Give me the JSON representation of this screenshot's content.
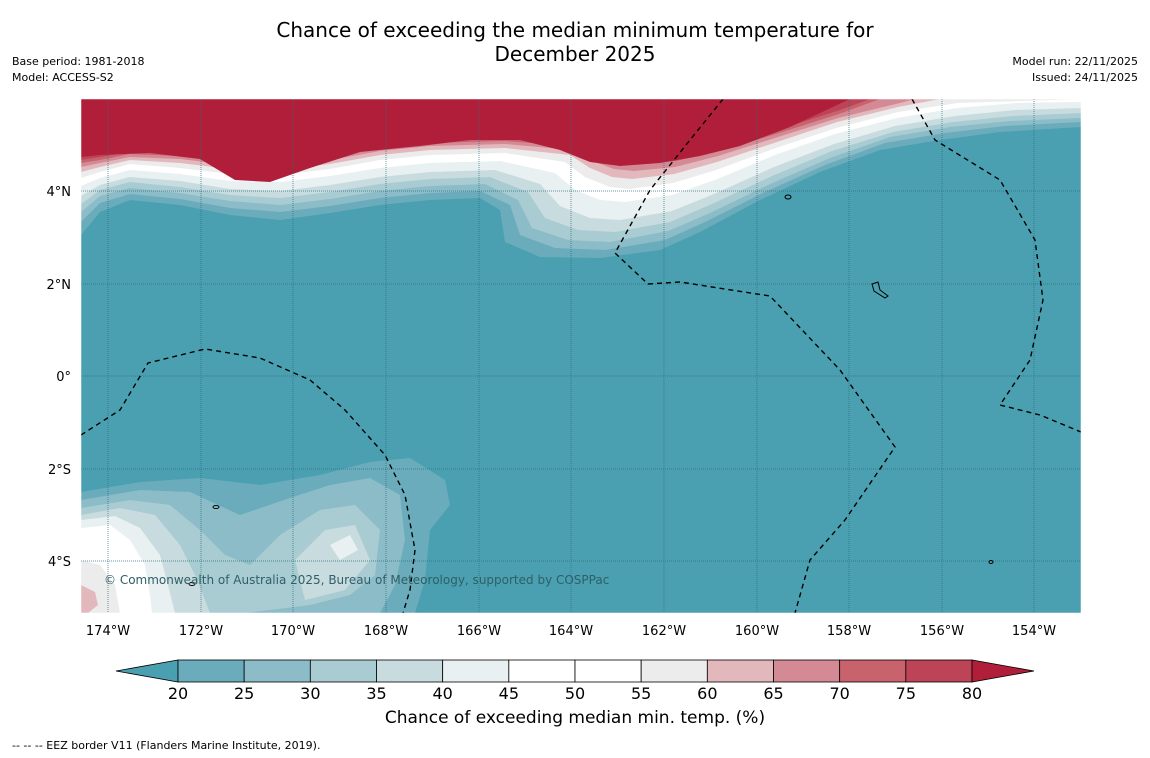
{
  "header": {
    "title_line1": "Chance of exceeding the median minimum temperature for",
    "title_line2": "December 2025",
    "base_period": "Base period: 1981-2018",
    "model": "Model: ACCESS-S2",
    "model_run": "Model run: 22/11/2025",
    "issued": "Issued: 24/11/2025"
  },
  "map": {
    "longitude_labels": [
      "174°W",
      "172°W",
      "170°W",
      "168°W",
      "166°W",
      "164°W",
      "162°W",
      "160°W",
      "158°W",
      "156°W",
      "154°W"
    ],
    "latitude_labels": [
      "4°N",
      "2°N",
      "0°",
      "2°S",
      "4°S"
    ],
    "copyright": "© Commonwealth of Australia 2025, Bureau of Meteorology, supported by COSPPac"
  },
  "colorbar": {
    "ticks": [
      "20",
      "25",
      "30",
      "35",
      "40",
      "45",
      "50",
      "55",
      "60",
      "65",
      "70",
      "75",
      "80"
    ],
    "title": "Chance of exceeding median min. temp. (%)",
    "below_color": "#4aa0b0",
    "above_color": "#b01e3a",
    "band_colors": [
      "#6aacbb",
      "#8bbcc8",
      "#a9ccd3",
      "#c8dcdf",
      "#e8f0f1",
      "#ffffff",
      "#ffffff",
      "#ececec",
      "#e2b8bd",
      "#d48a94",
      "#c8636e",
      "#bd4356"
    ]
  },
  "footnote": "--  --  -- EEZ border V11 (Flanders Marine Institute, 2019)."
}
